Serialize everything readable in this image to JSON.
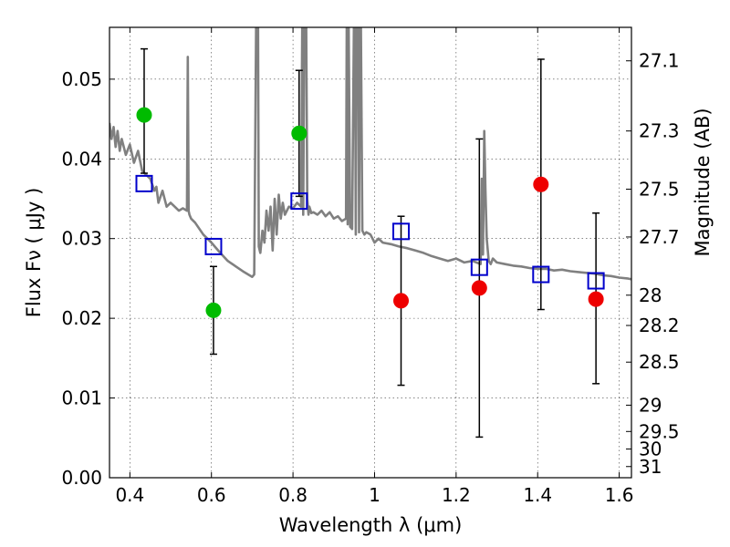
{
  "chart_data": {
    "type": "scatter",
    "xlabel": "Wavelength  λ (μm)",
    "ylabel": "Flux  Fν  ( μJy )",
    "y2label": "Magnitude (AB)",
    "xlim": [
      0.35,
      1.63
    ],
    "ylim": [
      0.0,
      0.0565
    ],
    "x_ticks": [
      0.4,
      0.6,
      0.8,
      1.0,
      1.2,
      1.4,
      1.6
    ],
    "x_tick_labels": [
      "0.4",
      "0.6",
      "0.8",
      "1",
      "1.2",
      "1.4",
      "1.6"
    ],
    "y_ticks": [
      0.0,
      0.01,
      0.02,
      0.03,
      0.04,
      0.05
    ],
    "y_tick_labels": [
      "0.00",
      "0.01",
      "0.02",
      "0.03",
      "0.04",
      "0.05"
    ],
    "mag_ticks": [
      {
        "label": "27.1",
        "flux": 0.0523
      },
      {
        "label": "27.3",
        "flux": 0.0435
      },
      {
        "label": "27.5",
        "flux": 0.0362
      },
      {
        "label": "27.7",
        "flux": 0.0302
      },
      {
        "label": "28",
        "flux": 0.0229
      },
      {
        "label": "28.2",
        "flux": 0.0191
      },
      {
        "label": "28.5",
        "flux": 0.0145
      },
      {
        "label": "29",
        "flux": 0.0091
      },
      {
        "label": "29.5",
        "flux": 0.0058
      },
      {
        "label": "30",
        "flux": 0.0036
      },
      {
        "label": "31",
        "flux": 0.0014
      }
    ],
    "grid": true,
    "colors": {
      "model": "#808080",
      "green": "#00bb00",
      "red": "#ee0000",
      "blue": "#0000cc",
      "errorbar": "#000000"
    },
    "series": [
      {
        "name": "model SED",
        "kind": "line",
        "x": [
          0.35,
          0.355,
          0.36,
          0.365,
          0.37,
          0.375,
          0.38,
          0.39,
          0.4,
          0.41,
          0.42,
          0.43,
          0.44,
          0.45,
          0.46,
          0.465,
          0.47,
          0.48,
          0.49,
          0.5,
          0.51,
          0.52,
          0.53,
          0.54,
          0.542,
          0.544,
          0.546,
          0.55,
          0.56,
          0.58,
          0.6,
          0.62,
          0.64,
          0.66,
          0.68,
          0.7,
          0.705,
          0.71,
          0.712,
          0.714,
          0.716,
          0.72,
          0.725,
          0.73,
          0.735,
          0.74,
          0.745,
          0.75,
          0.755,
          0.76,
          0.765,
          0.77,
          0.775,
          0.78,
          0.79,
          0.8,
          0.81,
          0.82,
          0.823,
          0.825,
          0.828,
          0.832,
          0.835,
          0.838,
          0.84,
          0.845,
          0.85,
          0.86,
          0.87,
          0.88,
          0.89,
          0.9,
          0.91,
          0.92,
          0.93,
          0.932,
          0.934,
          0.936,
          0.94,
          0.945,
          0.95,
          0.952,
          0.954,
          0.956,
          0.958,
          0.96,
          0.962,
          0.964,
          0.966,
          0.97,
          0.975,
          0.98,
          0.99,
          1.0,
          1.01,
          1.02,
          1.04,
          1.06,
          1.08,
          1.1,
          1.12,
          1.14,
          1.16,
          1.18,
          1.2,
          1.22,
          1.24,
          1.26,
          1.263,
          1.266,
          1.269,
          1.272,
          1.275,
          1.28,
          1.285,
          1.29,
          1.3,
          1.32,
          1.34,
          1.36,
          1.38,
          1.4,
          1.42,
          1.44,
          1.46,
          1.48,
          1.5,
          1.52,
          1.54,
          1.56,
          1.58,
          1.6,
          1.62,
          1.63
        ],
        "y": [
          0.0445,
          0.0425,
          0.044,
          0.0415,
          0.0435,
          0.041,
          0.0425,
          0.0405,
          0.0418,
          0.0395,
          0.041,
          0.0385,
          0.038,
          0.0375,
          0.036,
          0.0365,
          0.0345,
          0.036,
          0.034,
          0.0345,
          0.034,
          0.0335,
          0.0338,
          0.0335,
          0.0528,
          0.0335,
          0.033,
          0.0325,
          0.032,
          0.0305,
          0.0295,
          0.0283,
          0.0272,
          0.0265,
          0.0258,
          0.0252,
          0.0255,
          0.06,
          0.06,
          0.06,
          0.029,
          0.0282,
          0.031,
          0.0295,
          0.0335,
          0.031,
          0.034,
          0.0285,
          0.035,
          0.0305,
          0.0355,
          0.0325,
          0.0345,
          0.033,
          0.034,
          0.0338,
          0.0345,
          0.034,
          0.06,
          0.033,
          0.06,
          0.06,
          0.035,
          0.033,
          0.034,
          0.0332,
          0.0333,
          0.033,
          0.0335,
          0.0328,
          0.0333,
          0.0325,
          0.0328,
          0.0322,
          0.0325,
          0.06,
          0.0318,
          0.06,
          0.0315,
          0.0312,
          0.06,
          0.06,
          0.0305,
          0.06,
          0.06,
          0.06,
          0.0308,
          0.06,
          0.06,
          0.031,
          0.0305,
          0.0308,
          0.0305,
          0.0295,
          0.03,
          0.0295,
          0.0293,
          0.029,
          0.0288,
          0.0285,
          0.0282,
          0.0278,
          0.0275,
          0.0272,
          0.0275,
          0.027,
          0.0272,
          0.0268,
          0.0375,
          0.028,
          0.0435,
          0.036,
          0.03,
          0.0272,
          0.0268,
          0.0275,
          0.027,
          0.0268,
          0.0266,
          0.0265,
          0.0263,
          0.0262,
          0.0262,
          0.026,
          0.0261,
          0.0259,
          0.0258,
          0.0257,
          0.0256,
          0.0254,
          0.0253,
          0.0251,
          0.025,
          0.0249
        ]
      },
      {
        "name": "observed (green)",
        "kind": "point",
        "color": "green",
        "x": [
          0.435,
          0.605,
          0.815
        ],
        "y": [
          0.0455,
          0.021,
          0.0432
        ],
        "yerr_low": [
          null,
          0.0155,
          0.0353
        ],
        "yerr_high": [
          null,
          0.0265,
          0.0511
        ]
      },
      {
        "name": "observed (red)",
        "kind": "point",
        "color": "red",
        "x": [
          1.065,
          1.257,
          1.408,
          1.543
        ],
        "y": [
          0.0222,
          0.0238,
          0.0368,
          0.0224
        ],
        "yerr_low": [
          null,
          null,
          null,
          null
        ],
        "yerr_high": [
          null,
          null,
          null,
          null
        ]
      },
      {
        "name": "model photometry",
        "kind": "square",
        "color": "blue",
        "x": [
          0.435,
          0.605,
          0.815,
          1.065,
          1.257,
          1.408,
          1.543
        ],
        "y": [
          0.0369,
          0.029,
          0.0347,
          0.0309,
          0.0264,
          0.0255,
          0.0247
        ],
        "yerr_low": [
          0.0382,
          null,
          null,
          0.0116,
          0.0051,
          0.0211,
          0.0118
        ],
        "yerr_high": [
          0.0538,
          null,
          null,
          0.0328,
          0.0425,
          0.0525,
          0.0332
        ]
      }
    ]
  }
}
